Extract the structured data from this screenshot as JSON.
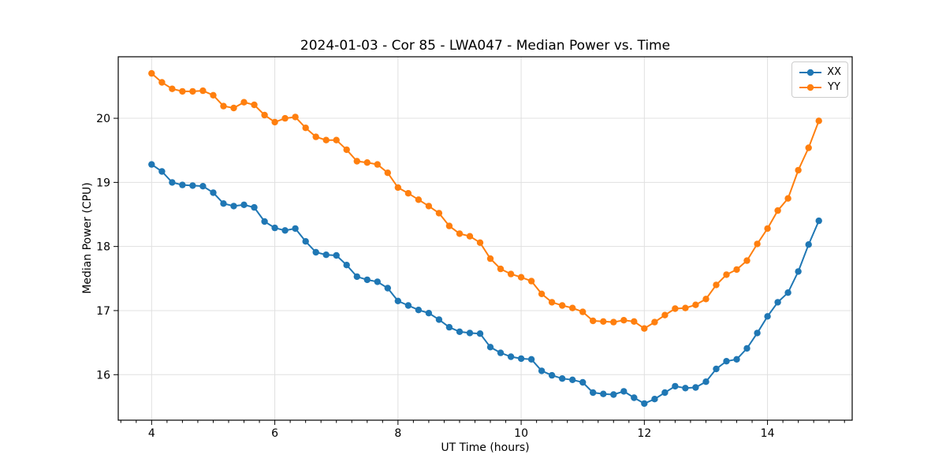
{
  "chart_data": {
    "type": "line",
    "title": "2024-01-03 - Cor 85 - LWA047 - Median Power vs. Time",
    "xlabel": "UT Time (hours)",
    "ylabel": "Median Power (CPU)",
    "xlim": [
      3.458,
      15.375
    ],
    "ylim": [
      15.29,
      20.96
    ],
    "x_ticks": [
      4,
      6,
      8,
      10,
      12,
      14
    ],
    "y_ticks": [
      16,
      17,
      18,
      19,
      20
    ],
    "x_minor_tick_step": 0.25,
    "grid": true,
    "legend_position": "upper right",
    "marker": "circle",
    "x_start": 4,
    "x_step_hours": 0.166667,
    "series": [
      {
        "name": "XX",
        "color": "#1f77b4",
        "values": [
          19.28,
          19.17,
          19.0,
          18.96,
          18.95,
          18.94,
          18.84,
          18.67,
          18.63,
          18.65,
          18.61,
          18.39,
          18.29,
          18.25,
          18.28,
          18.08,
          17.91,
          17.87,
          17.86,
          17.71,
          17.53,
          17.48,
          17.45,
          17.35,
          17.15,
          17.08,
          17.01,
          16.96,
          16.86,
          16.74,
          16.67,
          16.65,
          16.64,
          16.43,
          16.34,
          16.28,
          16.25,
          16.24,
          16.06,
          15.99,
          15.94,
          15.92,
          15.88,
          15.72,
          15.7,
          15.69,
          15.74,
          15.64,
          15.55,
          15.62,
          15.72,
          15.82,
          15.79,
          15.8,
          15.89,
          16.09,
          16.21,
          16.24,
          16.41,
          16.65,
          16.91,
          17.13,
          17.28,
          17.61,
          18.03,
          18.4
        ]
      },
      {
        "name": "YY",
        "color": "#ff7f0e",
        "values": [
          20.7,
          20.56,
          20.46,
          20.42,
          20.42,
          20.43,
          20.36,
          20.19,
          20.16,
          20.25,
          20.21,
          20.05,
          19.94,
          20.0,
          20.02,
          19.85,
          19.71,
          19.66,
          19.66,
          19.51,
          19.33,
          19.31,
          19.28,
          19.15,
          18.92,
          18.83,
          18.73,
          18.63,
          18.52,
          18.32,
          18.2,
          18.16,
          18.06,
          17.81,
          17.65,
          17.57,
          17.52,
          17.46,
          17.26,
          17.13,
          17.08,
          17.04,
          16.98,
          16.84,
          16.83,
          16.82,
          16.85,
          16.83,
          16.72,
          16.82,
          16.93,
          17.03,
          17.04,
          17.09,
          17.18,
          17.4,
          17.56,
          17.64,
          17.78,
          18.04,
          18.28,
          18.56,
          18.75,
          19.19,
          19.54,
          19.96
        ]
      }
    ]
  }
}
